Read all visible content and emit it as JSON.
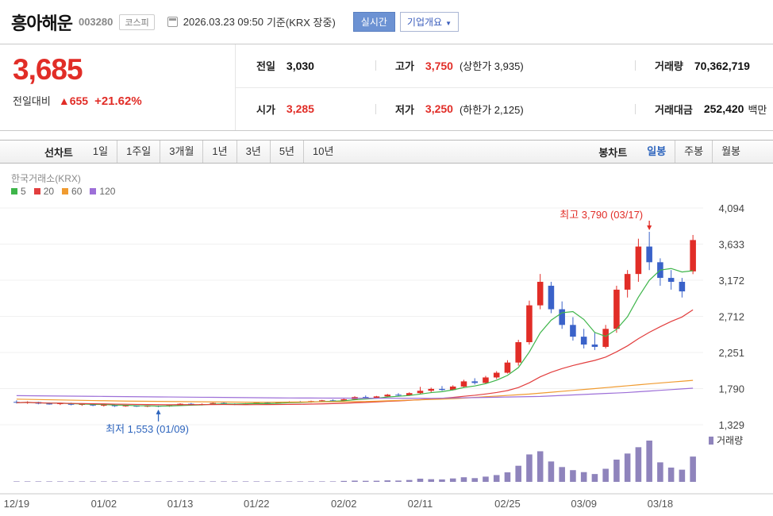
{
  "header": {
    "title": "흥아해운",
    "code": "003280",
    "market_badge": "코스피",
    "datetime": "2026.03.23 09:50",
    "basis": "기준(KRX 장중)",
    "realtime_button": "실시간",
    "overview_button": "기업개요",
    "overview_caret": "▼"
  },
  "summary": {
    "current_price": "3,685",
    "change_label": "전일대비",
    "change_arrow": "▲",
    "change_value": "655",
    "change_percent": "+21.62%",
    "prev_label": "전일",
    "prev_value": "3,030",
    "high_label": "고가",
    "high_value": "3,750",
    "high_extra": "(상한가 3,935)",
    "volume_label": "거래량",
    "volume_value": "70,362,719",
    "open_label": "시가",
    "open_value": "3,285",
    "low_label": "저가",
    "low_value": "3,250",
    "low_extra": "(하한가 2,125)",
    "amount_label": "거래대금",
    "amount_value": "252,420",
    "amount_unit": "백만"
  },
  "toolbar": {
    "line_label": "선차트",
    "periods": [
      "1일",
      "1주일",
      "3개월",
      "1년",
      "3년",
      "5년",
      "10년"
    ],
    "candle_label": "봉차트",
    "candle_items": [
      "일봉",
      "주봉",
      "월봉"
    ],
    "selected": "일봉"
  },
  "chart_data": {
    "type": "candlestick",
    "source_label": "한국거래소(KRX)",
    "ma_legend": [
      {
        "label": "5",
        "color": "#3eb54a"
      },
      {
        "label": "20",
        "color": "#e23e3e"
      },
      {
        "label": "60",
        "color": "#f09b30"
      },
      {
        "label": "120",
        "color": "#9d6fd8"
      }
    ],
    "price_axis": {
      "min": 1329,
      "max": 4094,
      "ticks": [
        4094,
        3633,
        3172,
        2712,
        2251,
        1790,
        1329
      ]
    },
    "x_ticks": {
      "labels": [
        "12/19",
        "01/02",
        "01/13",
        "01/22",
        "02/02",
        "02/11",
        "02/25",
        "03/09",
        "03/18"
      ],
      "indices": [
        0,
        8,
        15,
        22,
        30,
        37,
        45,
        52,
        59
      ]
    },
    "annotations": {
      "high": {
        "text": "최고 3,790 (03/17)",
        "index": 58,
        "price": 3790,
        "color": "#e12d27"
      },
      "low": {
        "text": "최저 1,553 (01/09)",
        "index": 13,
        "price": 1553,
        "color": "#2d64bd"
      }
    },
    "volume_legend": "거래량",
    "colors": {
      "up": "#e12d27",
      "down": "#3a62c9",
      "volume": "#8f84bc",
      "axis_text": "#444",
      "grid": "#f0f0f0",
      "axis_line": "#c9c9c9"
    },
    "ma_computed_periods": [
      5,
      20
    ],
    "ma_overlays": [
      {
        "period": 60,
        "color": "#f09b30",
        "points": [
          [
            0,
            1655
          ],
          [
            10,
            1630
          ],
          [
            22,
            1615
          ],
          [
            32,
            1625
          ],
          [
            40,
            1660
          ],
          [
            47,
            1720
          ],
          [
            53,
            1790
          ],
          [
            58,
            1850
          ],
          [
            62,
            1895
          ]
        ]
      },
      {
        "period": 120,
        "color": "#9d6fd8",
        "points": [
          [
            0,
            1700
          ],
          [
            12,
            1685
          ],
          [
            25,
            1670
          ],
          [
            38,
            1665
          ],
          [
            48,
            1690
          ],
          [
            56,
            1740
          ],
          [
            62,
            1795
          ]
        ]
      }
    ],
    "candles": [
      [
        1620,
        1640,
        1600,
        1610,
        900000
      ],
      [
        1610,
        1628,
        1596,
        1618,
        700000
      ],
      [
        1618,
        1622,
        1590,
        1598,
        800000
      ],
      [
        1598,
        1612,
        1585,
        1592,
        600000
      ],
      [
        1592,
        1608,
        1580,
        1602,
        700000
      ],
      [
        1602,
        1610,
        1576,
        1584,
        900000
      ],
      [
        1584,
        1600,
        1570,
        1592,
        650000
      ],
      [
        1592,
        1596,
        1566,
        1574,
        720000
      ],
      [
        1574,
        1590,
        1560,
        1582,
        880000
      ],
      [
        1582,
        1586,
        1556,
        1566,
        760000
      ],
      [
        1566,
        1580,
        1558,
        1574,
        690000
      ],
      [
        1574,
        1578,
        1556,
        1560,
        710000
      ],
      [
        1560,
        1576,
        1554,
        1570,
        830000
      ],
      [
        1570,
        1574,
        1553,
        1562,
        950000
      ],
      [
        1562,
        1582,
        1558,
        1576,
        800000
      ],
      [
        1576,
        1602,
        1572,
        1596,
        1100000
      ],
      [
        1596,
        1606,
        1580,
        1586,
        900000
      ],
      [
        1586,
        1600,
        1576,
        1592,
        750000
      ],
      [
        1592,
        1612,
        1586,
        1606,
        980000
      ],
      [
        1606,
        1614,
        1588,
        1594,
        820000
      ],
      [
        1594,
        1602,
        1580,
        1588,
        700000
      ],
      [
        1588,
        1604,
        1582,
        1600,
        760000
      ],
      [
        1600,
        1616,
        1592,
        1610,
        1000000
      ],
      [
        1610,
        1622,
        1596,
        1602,
        850000
      ],
      [
        1602,
        1620,
        1598,
        1614,
        900000
      ],
      [
        1614,
        1628,
        1606,
        1622,
        1050000
      ],
      [
        1622,
        1632,
        1608,
        1616,
        880000
      ],
      [
        1616,
        1636,
        1610,
        1630,
        1150000
      ],
      [
        1630,
        1646,
        1620,
        1640,
        1300000
      ],
      [
        1640,
        1652,
        1626,
        1634,
        1000000
      ],
      [
        1634,
        1662,
        1630,
        1654,
        2600000
      ],
      [
        1654,
        1692,
        1646,
        1682,
        3400000
      ],
      [
        1682,
        1702,
        1662,
        1672,
        2900000
      ],
      [
        1672,
        1696,
        1666,
        1690,
        3100000
      ],
      [
        1690,
        1722,
        1682,
        1712,
        4200000
      ],
      [
        1712,
        1732,
        1692,
        1702,
        3600000
      ],
      [
        1702,
        1742,
        1696,
        1732,
        5200000
      ],
      [
        1732,
        1812,
        1722,
        1762,
        8900000
      ],
      [
        1762,
        1802,
        1742,
        1786,
        7400000
      ],
      [
        1786,
        1822,
        1762,
        1772,
        6800000
      ],
      [
        1772,
        1832,
        1766,
        1816,
        9500000
      ],
      [
        1816,
        1902,
        1802,
        1882,
        12800000
      ],
      [
        1882,
        1922,
        1842,
        1862,
        10400000
      ],
      [
        1862,
        1952,
        1852,
        1932,
        14600000
      ],
      [
        1932,
        2012,
        1912,
        1992,
        18900000
      ],
      [
        1992,
        2152,
        1982,
        2122,
        26500000
      ],
      [
        2122,
        2412,
        2082,
        2382,
        44800000
      ],
      [
        2382,
        2912,
        2352,
        2852,
        76300000
      ],
      [
        2852,
        3252,
        2802,
        3152,
        85100000
      ],
      [
        3102,
        3152,
        2752,
        2802,
        56700000
      ],
      [
        2802,
        2902,
        2552,
        2602,
        41200000
      ],
      [
        2602,
        2702,
        2402,
        2452,
        32600000
      ],
      [
        2452,
        2552,
        2302,
        2352,
        27100000
      ],
      [
        2352,
        2502,
        2282,
        2322,
        21800000
      ],
      [
        2322,
        2602,
        2302,
        2552,
        36400000
      ],
      [
        2552,
        3102,
        2502,
        3052,
        61900000
      ],
      [
        3052,
        3302,
        2952,
        3252,
        78800000
      ],
      [
        3252,
        3702,
        3152,
        3602,
        96400000
      ],
      [
        3602,
        3790,
        3302,
        3402,
        114800000
      ],
      [
        3402,
        3452,
        3102,
        3202,
        54300000
      ],
      [
        3202,
        3302,
        3052,
        3152,
        39700000
      ],
      [
        3152,
        3202,
        2952,
        3030,
        33900000
      ],
      [
        3285,
        3750,
        3250,
        3685,
        70362719
      ]
    ]
  }
}
